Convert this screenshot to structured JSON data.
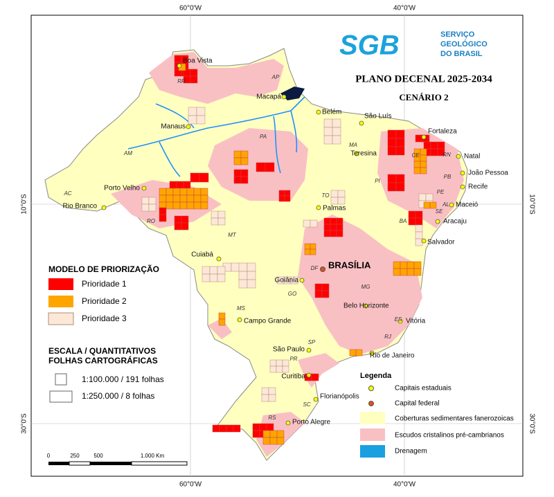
{
  "header": {
    "title": "PLANO DECENAL 2025-2034",
    "subtitle": "CENÁRIO 2",
    "logo": "SGB",
    "logo_lines": [
      "SERVIÇO",
      "GEOLÓGICO",
      "DO BRASIL"
    ]
  },
  "graticule": {
    "top": [
      "60°0'W",
      "40°0'W"
    ],
    "bottom": [
      "60°0'W",
      "40°0'W"
    ],
    "left": [
      "10°0'S",
      "30°0'S"
    ],
    "right": [
      "10°0'S",
      "30°0'S"
    ]
  },
  "capital_federal": "BRASÍLIA",
  "cities": [
    "Boa Vista",
    "Macapá",
    "Belém",
    "São Luís",
    "Fortaleza",
    "Natal",
    "João Pessoa",
    "Recife",
    "Maceió",
    "Aracaju",
    "Salvador",
    "Teresina",
    "Palmas",
    "Goiânia",
    "Belo Horizonte",
    "Vitória",
    "Rio de Janeiro",
    "São Paulo",
    "Curitiba",
    "Florianópolis",
    "Porto Alegre",
    "Campo Grande",
    "Cuiabá",
    "Porto Velho",
    "Rio Branco",
    "Manaus"
  ],
  "states": [
    "RR",
    "AP",
    "AM",
    "PA",
    "MA",
    "CE",
    "RN",
    "PB",
    "PE",
    "AL",
    "SE",
    "PI",
    "TO",
    "BA",
    "MT",
    "RO",
    "AC",
    "GO",
    "DF",
    "MG",
    "ES",
    "RJ",
    "SP",
    "MS",
    "PR",
    "SC",
    "RS"
  ],
  "priority_legend": {
    "title": "MODELO DE PRIORIZAÇÃO",
    "items": [
      "Prioridade 1",
      "Prioridade 2",
      "Prioridade 3"
    ]
  },
  "scale_legend": {
    "title_lines": [
      "ESCALA / QUANTITATIVOS",
      "FOLHAS CARTOGRÁFICAS"
    ],
    "items": [
      "1:100.000 / 191 folhas",
      "1:250.000 / 8 folhas"
    ]
  },
  "legend": {
    "title": "Legenda",
    "items": [
      "Capitais estaduais",
      "Capital federal",
      "Coberturas sedimentares fanerozoicas",
      "Escudos cristalinos pré-cambrianos",
      "Drenagem"
    ]
  },
  "scalebar": [
    "0",
    "250",
    "500",
    "1.000 Km"
  ]
}
